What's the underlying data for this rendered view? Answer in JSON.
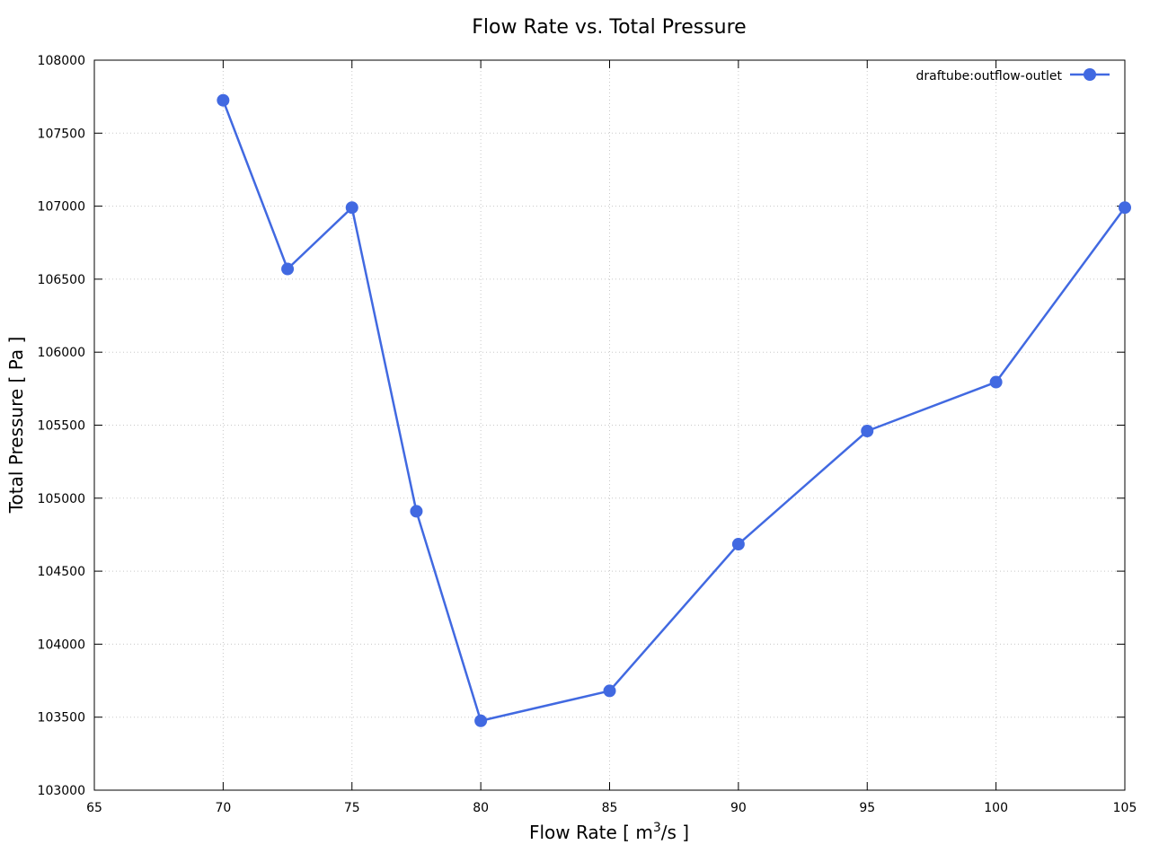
{
  "chart_data": {
    "type": "line",
    "title": "Flow Rate vs. Total Pressure",
    "xlabel": {
      "main": "Flow Rate [ m",
      "sup": "3",
      "tail": "/s ]"
    },
    "ylabel": "Total Pressure [ Pa ]",
    "xlim": [
      65,
      105
    ],
    "ylim": [
      103000,
      108000
    ],
    "xticks": [
      65,
      70,
      75,
      80,
      85,
      90,
      95,
      100,
      105
    ],
    "yticks": [
      103000,
      103500,
      104000,
      104500,
      105000,
      105500,
      106000,
      106500,
      107000,
      107500,
      108000
    ],
    "grid": true,
    "legend_position": "top-right",
    "series": [
      {
        "name": "draftube:outflow-outlet",
        "color": "#4169e1",
        "x": [
          70,
          72.5,
          75,
          77.5,
          80,
          85,
          90,
          95,
          100,
          105
        ],
        "y": [
          107725,
          106570,
          106990,
          104910,
          103475,
          103680,
          104685,
          105460,
          105795,
          106990
        ]
      }
    ]
  }
}
